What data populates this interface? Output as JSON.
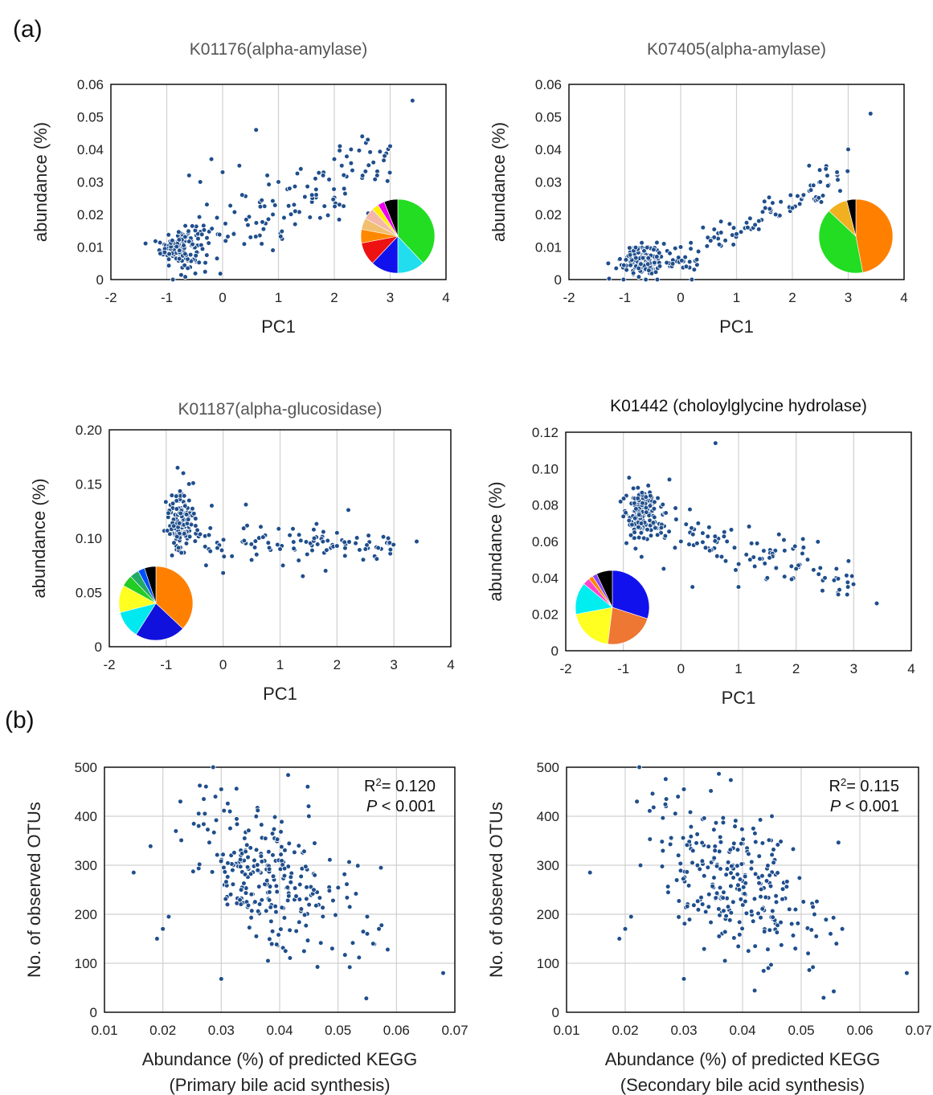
{
  "panel_labels": {
    "a": "(a)",
    "b": "(b)"
  },
  "colors": {
    "point": "#1f4e8c",
    "point_edge": "#ffffff",
    "grid": "#d0d0d0",
    "frame": "#000000"
  },
  "chart_data": [
    {
      "id": "k01176",
      "type": "scatter",
      "title": "K01176(alpha-amylase)",
      "xlabel": "PC1",
      "ylabel": "abundance (%)",
      "xlim": [
        -2,
        4
      ],
      "ylim": [
        0,
        0.06
      ],
      "xticks": [
        "-2",
        "-1",
        "0",
        "1",
        "2",
        "3",
        "4"
      ],
      "yticks": [
        "0",
        "0.01",
        "0.02",
        "0.03",
        "0.04",
        "0.05",
        "0.06"
      ],
      "grid": "vertical",
      "trend": "increasing",
      "cluster": {
        "x": -0.75,
        "y": 0.01,
        "sx": 0.18,
        "sy": 0.003,
        "n": 140
      },
      "points": [
        [
          -0.9,
          0.012
        ],
        [
          -0.6,
          0.032
        ],
        [
          -0.4,
          0.03
        ],
        [
          -0.2,
          0.037
        ],
        [
          0.0,
          0.033
        ],
        [
          0.3,
          0.035
        ],
        [
          0.35,
          0.026
        ],
        [
          0.6,
          0.046
        ],
        [
          0.8,
          0.032
        ],
        [
          0.9,
          0.02
        ],
        [
          1.0,
          0.03
        ],
        [
          1.2,
          0.028
        ],
        [
          1.4,
          0.034
        ],
        [
          1.6,
          0.026
        ],
        [
          1.8,
          0.032
        ],
        [
          2.0,
          0.037
        ],
        [
          2.1,
          0.041
        ],
        [
          2.3,
          0.04
        ],
        [
          2.5,
          0.044
        ],
        [
          2.6,
          0.043
        ],
        [
          2.7,
          0.036
        ],
        [
          2.9,
          0.038
        ],
        [
          3.0,
          0.041
        ],
        [
          3.4,
          0.055
        ],
        [
          -0.1,
          0.019
        ],
        [
          0.2,
          0.014
        ],
        [
          0.5,
          0.013
        ],
        [
          0.7,
          0.011
        ],
        [
          0.9,
          0.009
        ],
        [
          1.1,
          0.019
        ],
        [
          1.3,
          0.021
        ]
      ],
      "pie": [
        {
          "color": "#22dd22",
          "value": 0.38
        },
        {
          "color": "#22ddee",
          "value": 0.12
        },
        {
          "color": "#1111ee",
          "value": 0.12
        },
        {
          "color": "#ee1111",
          "value": 0.1
        },
        {
          "color": "#ff8800",
          "value": 0.06
        },
        {
          "color": "#f0c070",
          "value": 0.05
        },
        {
          "color": "#f4b8a8",
          "value": 0.05
        },
        {
          "color": "#ffee00",
          "value": 0.03
        },
        {
          "color": "#ee00ee",
          "value": 0.03
        },
        {
          "color": "#000000",
          "value": 0.06
        }
      ],
      "pie_pos": "bottom-right"
    },
    {
      "id": "k07405",
      "type": "scatter",
      "title": "K07405(alpha-amylase)",
      "xlabel": "PC1",
      "ylabel": "abundance (%)",
      "xlim": [
        -2,
        4
      ],
      "ylim": [
        0,
        0.06
      ],
      "xticks": [
        "-2",
        "-1",
        "0",
        "1",
        "2",
        "3",
        "4"
      ],
      "yticks": [
        "0",
        "0.01",
        "0.02",
        "0.03",
        "0.04",
        "0.05",
        "0.06"
      ],
      "grid": "vertical",
      "trend": "increasing-steep",
      "cluster": {
        "x": -0.7,
        "y": 0.006,
        "sx": 0.18,
        "sy": 0.0025,
        "n": 140
      },
      "points": [
        [
          -0.3,
          0.011
        ],
        [
          0.0,
          0.01
        ],
        [
          0.4,
          0.016
        ],
        [
          0.6,
          0.013
        ],
        [
          0.8,
          0.012
        ],
        [
          1.0,
          0.014
        ],
        [
          1.2,
          0.016
        ],
        [
          1.4,
          0.018
        ],
        [
          1.5,
          0.024
        ],
        [
          1.7,
          0.02
        ],
        [
          2.0,
          0.022
        ],
        [
          2.2,
          0.026
        ],
        [
          2.3,
          0.035
        ],
        [
          2.5,
          0.03
        ],
        [
          2.6,
          0.034
        ],
        [
          2.8,
          0.033
        ],
        [
          3.0,
          0.04
        ],
        [
          3.4,
          0.051
        ],
        [
          0.2,
          0.0
        ],
        [
          0.1,
          0.004
        ]
      ],
      "pie": [
        {
          "color": "#ff8000",
          "value": 0.47
        },
        {
          "color": "#22dd22",
          "value": 0.4
        },
        {
          "color": "#f0b020",
          "value": 0.09
        },
        {
          "color": "#000000",
          "value": 0.04
        }
      ],
      "pie_pos": "bottom-right"
    },
    {
      "id": "k01187",
      "type": "scatter",
      "title": "K01187(alpha-glucosidase)",
      "xlabel": "PC1",
      "ylabel": "abundance (%)",
      "xlim": [
        -2,
        4
      ],
      "ylim": [
        0,
        0.2
      ],
      "xticks": [
        "-2",
        "-1",
        "0",
        "1",
        "2",
        "3",
        "4"
      ],
      "yticks": [
        "0",
        "0.05",
        "0.10",
        "0.15",
        "0.20"
      ],
      "grid": "vertical",
      "trend": "flat",
      "cluster": {
        "x": -0.75,
        "y": 0.115,
        "sx": 0.12,
        "sy": 0.014,
        "n": 140
      },
      "points": [
        [
          -0.8,
          0.165
        ],
        [
          -0.7,
          0.16
        ],
        [
          -0.6,
          0.15
        ],
        [
          -0.2,
          0.13
        ],
        [
          0.4,
          0.131
        ],
        [
          2.2,
          0.126
        ],
        [
          3.4,
          0.097
        ],
        [
          0.0,
          0.068
        ],
        [
          -0.3,
          0.075
        ],
        [
          0.5,
          0.08
        ],
        [
          1.0,
          0.09
        ],
        [
          1.4,
          0.065
        ],
        [
          1.8,
          0.07
        ],
        [
          2.5,
          0.09
        ],
        [
          2.9,
          0.1
        ],
        [
          1.6,
          0.1
        ],
        [
          2.0,
          0.105
        ]
      ],
      "pie": [
        {
          "color": "#ff8000",
          "value": 0.37
        },
        {
          "color": "#1111dd",
          "value": 0.22
        },
        {
          "color": "#00e8f0",
          "value": 0.12
        },
        {
          "color": "#ffff22",
          "value": 0.12
        },
        {
          "color": "#22cc22",
          "value": 0.05
        },
        {
          "color": "#22aa66",
          "value": 0.04
        },
        {
          "color": "#0050ff",
          "value": 0.03
        },
        {
          "color": "#000000",
          "value": 0.05
        }
      ],
      "pie_pos": "bottom-left"
    },
    {
      "id": "k01442",
      "type": "scatter",
      "title": "K01442 (choloylglycine hydrolase)",
      "xlabel": "PC1",
      "ylabel": "abundance (%)",
      "xlim": [
        -2,
        4
      ],
      "ylim": [
        0,
        0.12
      ],
      "xticks": [
        "-2",
        "-1",
        "0",
        "1",
        "2",
        "3",
        "4"
      ],
      "yticks": [
        "0",
        "0.02",
        "0.04",
        "0.06",
        "0.08",
        "0.10",
        "0.12"
      ],
      "grid": "vertical",
      "trend": "decreasing",
      "cluster": {
        "x": -0.7,
        "y": 0.075,
        "sx": 0.15,
        "sy": 0.007,
        "n": 140
      },
      "points": [
        [
          -0.9,
          0.095
        ],
        [
          0.6,
          0.114
        ],
        [
          -0.2,
          0.094
        ],
        [
          3.4,
          0.026
        ],
        [
          2.9,
          0.035
        ],
        [
          2.5,
          0.04
        ],
        [
          2.0,
          0.045
        ],
        [
          1.5,
          0.04
        ],
        [
          1.2,
          0.05
        ],
        [
          1.0,
          0.035
        ],
        [
          0.5,
          0.055
        ],
        [
          0.0,
          0.06
        ],
        [
          0.3,
          0.07
        ],
        [
          0.8,
          0.06
        ],
        [
          1.8,
          0.055
        ],
        [
          2.2,
          0.05
        ],
        [
          2.7,
          0.045
        ],
        [
          -0.3,
          0.045
        ],
        [
          0.2,
          0.035
        ]
      ],
      "pie": [
        {
          "color": "#1111ee",
          "value": 0.3
        },
        {
          "color": "#ee7733",
          "value": 0.22
        },
        {
          "color": "#ffff22",
          "value": 0.2
        },
        {
          "color": "#00eef0",
          "value": 0.14
        },
        {
          "color": "#ff44cc",
          "value": 0.03
        },
        {
          "color": "#ff8800",
          "value": 0.02
        },
        {
          "color": "#8844ff",
          "value": 0.02
        },
        {
          "color": "#000000",
          "value": 0.07
        }
      ],
      "pie_pos": "bottom-left"
    },
    {
      "id": "primary",
      "type": "scatter",
      "title": "",
      "xlabel": "Abundance (%) of predicted KEGG",
      "xlabel2": "(Primary bile acid synthesis)",
      "ylabel": "No. of observed OTUs",
      "xlim": [
        0.01,
        0.07
      ],
      "ylim": [
        0,
        500
      ],
      "xticks": [
        "0.01",
        "0.02",
        "0.03",
        "0.04",
        "0.05",
        "0.06",
        "0.07"
      ],
      "yticks": [
        "0",
        "100",
        "200",
        "300",
        "400",
        "500"
      ],
      "grid": "both",
      "stat_r2": "= 0.120",
      "stat_p": "< 0.001",
      "cloud": {
        "x": 0.038,
        "y": 280,
        "sx": 0.007,
        "sy": 70,
        "n": 260
      },
      "points": [
        [
          0.015,
          285
        ],
        [
          0.019,
          150
        ],
        [
          0.02,
          170
        ],
        [
          0.021,
          195
        ],
        [
          0.023,
          430
        ],
        [
          0.027,
          435
        ],
        [
          0.029,
          440
        ],
        [
          0.03,
          455
        ],
        [
          0.03,
          68
        ],
        [
          0.052,
          92
        ],
        [
          0.055,
          160
        ],
        [
          0.056,
          140
        ],
        [
          0.057,
          170
        ],
        [
          0.068,
          80
        ],
        [
          0.049,
          130
        ],
        [
          0.052,
          215
        ],
        [
          0.045,
          400
        ],
        [
          0.038,
          105
        ],
        [
          0.036,
          155
        ],
        [
          0.041,
          125
        ]
      ]
    },
    {
      "id": "secondary",
      "type": "scatter",
      "title": "",
      "xlabel": "Abundance (%) of predicted KEGG",
      "xlabel2": "(Secondary bile acid synthesis)",
      "ylabel": "No. of observed OTUs",
      "xlim": [
        0.01,
        0.07
      ],
      "ylim": [
        0,
        500
      ],
      "xticks": [
        "0.01",
        "0.02",
        "0.03",
        "0.04",
        "0.05",
        "0.06",
        "0.07"
      ],
      "yticks": [
        "0",
        "100",
        "200",
        "300",
        "400",
        "500"
      ],
      "grid": "both",
      "stat_r2": "= 0.115",
      "stat_p": "< 0.001",
      "cloud": {
        "x": 0.038,
        "y": 280,
        "sx": 0.007,
        "sy": 70,
        "n": 260
      },
      "points": [
        [
          0.014,
          285
        ],
        [
          0.019,
          150
        ],
        [
          0.02,
          170
        ],
        [
          0.021,
          195
        ],
        [
          0.022,
          430
        ],
        [
          0.027,
          435
        ],
        [
          0.029,
          440
        ],
        [
          0.03,
          455
        ],
        [
          0.03,
          68
        ],
        [
          0.052,
          92
        ],
        [
          0.055,
          160
        ],
        [
          0.056,
          140
        ],
        [
          0.057,
          170
        ],
        [
          0.068,
          80
        ],
        [
          0.049,
          130
        ],
        [
          0.052,
          215
        ],
        [
          0.045,
          400
        ],
        [
          0.037,
          105
        ],
        [
          0.036,
          155
        ],
        [
          0.041,
          125
        ]
      ]
    }
  ]
}
